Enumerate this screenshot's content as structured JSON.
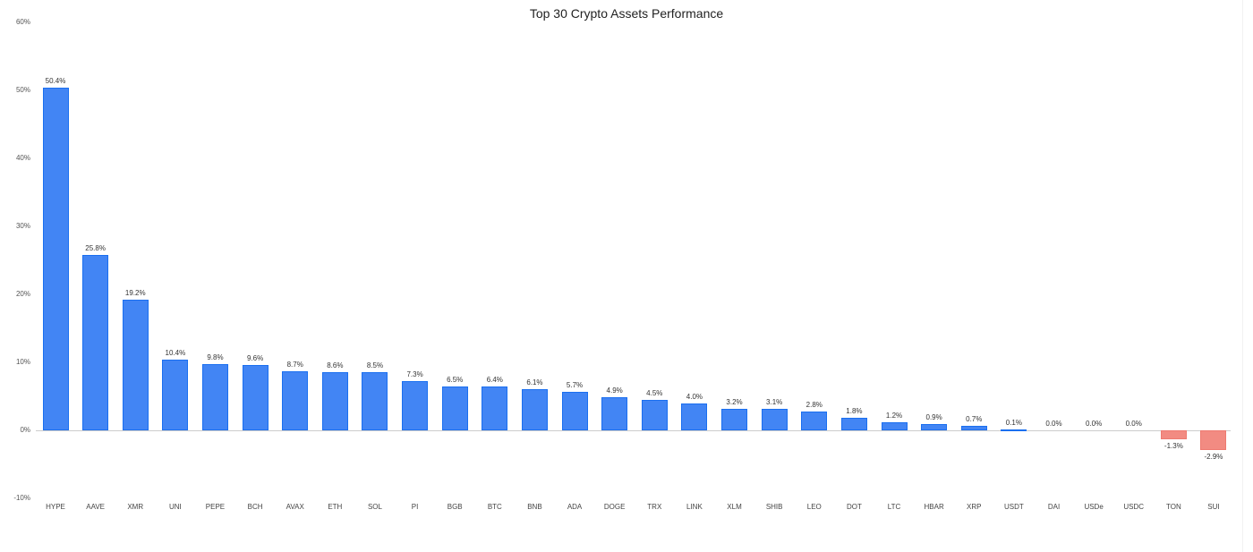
{
  "chart_data": {
    "type": "bar",
    "title": "Top 30 Crypto Assets Performance",
    "xlabel": "",
    "ylabel": "",
    "ylim": [
      -10,
      60
    ],
    "yticks": [
      "60%",
      "50%",
      "40%",
      "30%",
      "20%",
      "10%",
      "0%",
      "-10%"
    ],
    "grid": false,
    "legend": null,
    "colors": {
      "positive": "#4285f4",
      "negative": "#f28b82"
    },
    "categories": [
      "HYPE",
      "AAVE",
      "XMR",
      "UNI",
      "PEPE",
      "BCH",
      "AVAX",
      "ETH",
      "SOL",
      "PI",
      "BGB",
      "BTC",
      "BNB",
      "ADA",
      "DOGE",
      "TRX",
      "LINK",
      "XLM",
      "SHIB",
      "LEO",
      "DOT",
      "LTC",
      "HBAR",
      "XRP",
      "USDT",
      "DAI",
      "USDe",
      "USDC",
      "TON",
      "SUI"
    ],
    "values": [
      50.4,
      25.8,
      19.2,
      10.4,
      9.8,
      9.6,
      8.7,
      8.6,
      8.5,
      7.3,
      6.5,
      6.4,
      6.1,
      5.7,
      4.9,
      4.5,
      4.0,
      3.2,
      3.1,
      2.8,
      1.8,
      1.2,
      0.9,
      0.7,
      0.1,
      0.0,
      0.0,
      0.0,
      -1.3,
      -2.9
    ],
    "value_labels": [
      "50.4%",
      "25.8%",
      "19.2%",
      "10.4%",
      "9.8%",
      "9.6%",
      "8.7%",
      "8.6%",
      "8.5%",
      "7.3%",
      "6.5%",
      "6.4%",
      "6.1%",
      "5.7%",
      "4.9%",
      "4.5%",
      "4.0%",
      "3.2%",
      "3.1%",
      "2.8%",
      "1.8%",
      "1.2%",
      "0.9%",
      "0.7%",
      "0.1%",
      "0.0%",
      "0.0%",
      "0.0%",
      "-1.3%",
      "-2.9%"
    ]
  }
}
